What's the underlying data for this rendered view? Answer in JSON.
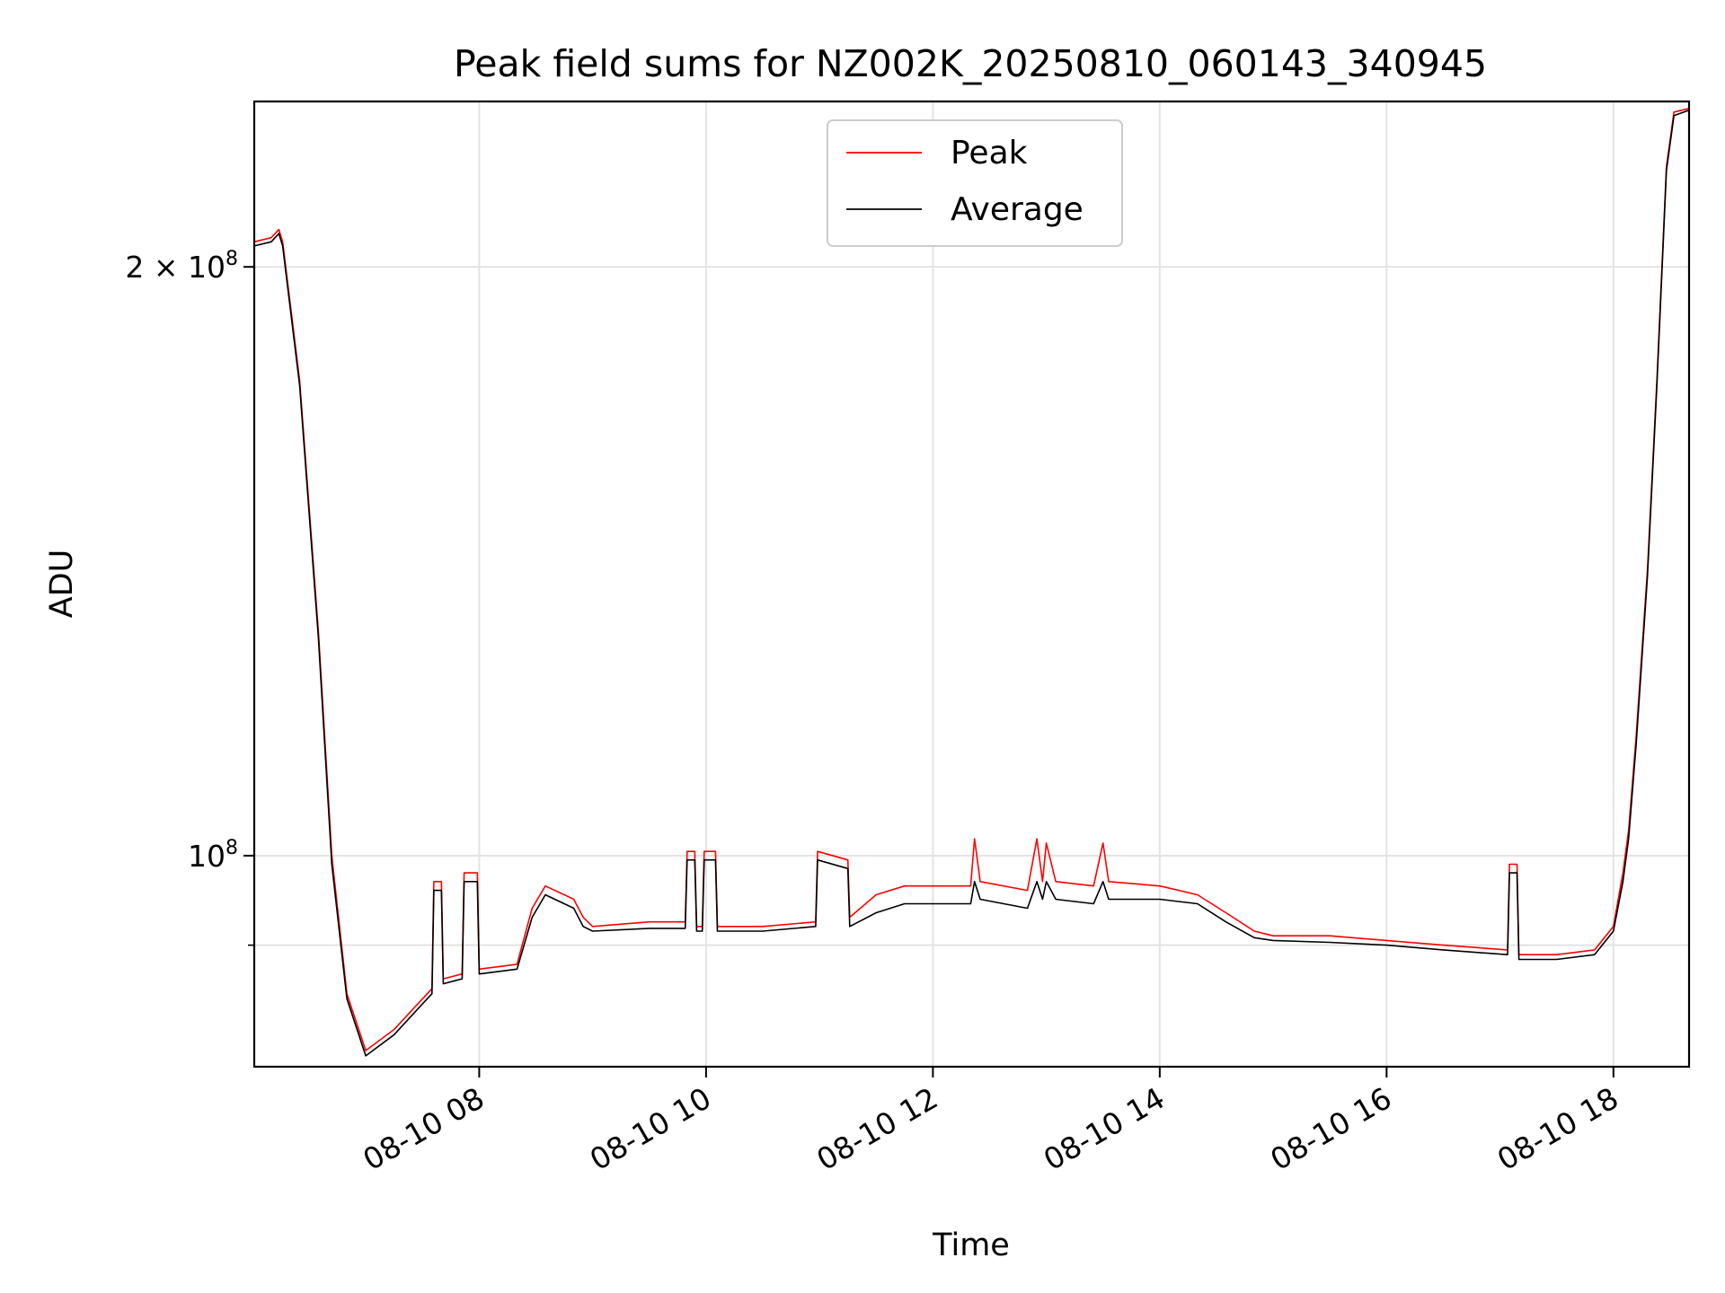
{
  "chart_data": {
    "type": "line",
    "title": "Peak field sums for NZ002K_20250810_060143_340945",
    "xlabel": "Time",
    "ylabel": "ADU",
    "x_ticks": [
      "08-10 08",
      "08-10 10",
      "08-10 12",
      "08-10 14",
      "08-10 16",
      "08-10 18"
    ],
    "y_ticks": [
      {
        "value": 100000000,
        "base": "10",
        "exp": "8",
        "coef": ""
      },
      {
        "value": 200000000,
        "base": "10",
        "exp": "8",
        "coef": "2 × "
      }
    ],
    "y_scale": "log",
    "xlim": [
      "2025-08-10 06:01",
      "2025-08-10 18:40"
    ],
    "ylim": [
      78000000,
      243000000
    ],
    "grid": true,
    "legend_position": "top-center",
    "series": [
      {
        "name": "Peak",
        "color": "#ff0000",
        "points": [
          [
            "2025-08-10 06:01",
            206000000
          ],
          [
            "2025-08-10 06:10",
            207000000
          ],
          [
            "2025-08-10 06:14",
            209000000
          ],
          [
            "2025-08-10 06:16",
            206000000
          ],
          [
            "2025-08-10 06:25",
            175000000
          ],
          [
            "2025-08-10 06:35",
            130000000
          ],
          [
            "2025-08-10 06:42",
            100000000
          ],
          [
            "2025-08-10 06:50",
            85000000
          ],
          [
            "2025-08-10 07:00",
            79500000
          ],
          [
            "2025-08-10 07:15",
            81500000
          ],
          [
            "2025-08-10 07:30",
            84500000
          ],
          [
            "2025-08-10 07:35",
            85500000
          ],
          [
            "2025-08-10 07:36",
            97000000
          ],
          [
            "2025-08-10 07:40",
            97000000
          ],
          [
            "2025-08-10 07:41",
            86500000
          ],
          [
            "2025-08-10 07:51",
            87000000
          ],
          [
            "2025-08-10 07:52",
            98000000
          ],
          [
            "2025-08-10 07:59",
            98000000
          ],
          [
            "2025-08-10 08:00",
            87500000
          ],
          [
            "2025-08-10 08:20",
            88000000
          ],
          [
            "2025-08-10 08:28",
            94000000
          ],
          [
            "2025-08-10 08:35",
            96500000
          ],
          [
            "2025-08-10 08:45",
            95500000
          ],
          [
            "2025-08-10 08:50",
            95000000
          ],
          [
            "2025-08-10 08:55",
            93000000
          ],
          [
            "2025-08-10 09:00",
            92000000
          ],
          [
            "2025-08-10 09:30",
            92500000
          ],
          [
            "2025-08-10 09:49",
            92500000
          ],
          [
            "2025-08-10 09:50",
            100500000
          ],
          [
            "2025-08-10 09:54",
            100500000
          ],
          [
            "2025-08-10 09:55",
            92000000
          ],
          [
            "2025-08-10 09:58",
            92000000
          ],
          [
            "2025-08-10 09:59",
            100500000
          ],
          [
            "2025-08-10 10:05",
            100500000
          ],
          [
            "2025-08-10 10:06",
            92000000
          ],
          [
            "2025-08-10 10:30",
            92000000
          ],
          [
            "2025-08-10 10:58",
            92500000
          ],
          [
            "2025-08-10 10:59",
            100500000
          ],
          [
            "2025-08-10 11:15",
            99500000
          ],
          [
            "2025-08-10 11:16",
            93000000
          ],
          [
            "2025-08-10 11:30",
            95500000
          ],
          [
            "2025-08-10 11:45",
            96500000
          ],
          [
            "2025-08-10 12:00",
            96500000
          ],
          [
            "2025-08-10 12:20",
            96500000
          ],
          [
            "2025-08-10 12:22",
            102000000
          ],
          [
            "2025-08-10 12:25",
            97000000
          ],
          [
            "2025-08-10 12:50",
            96000000
          ],
          [
            "2025-08-10 12:55",
            102000000
          ],
          [
            "2025-08-10 12:58",
            97000000
          ],
          [
            "2025-08-10 13:00",
            101500000
          ],
          [
            "2025-08-10 13:05",
            97000000
          ],
          [
            "2025-08-10 13:25",
            96500000
          ],
          [
            "2025-08-10 13:30",
            101500000
          ],
          [
            "2025-08-10 13:33",
            97000000
          ],
          [
            "2025-08-10 14:00",
            96500000
          ],
          [
            "2025-08-10 14:20",
            95500000
          ],
          [
            "2025-08-10 14:35",
            93500000
          ],
          [
            "2025-08-10 14:50",
            91500000
          ],
          [
            "2025-08-10 15:00",
            91000000
          ],
          [
            "2025-08-10 15:30",
            91000000
          ],
          [
            "2025-08-10 16:00",
            90500000
          ],
          [
            "2025-08-10 16:30",
            90000000
          ],
          [
            "2025-08-10 17:04",
            89500000
          ],
          [
            "2025-08-10 17:05",
            99000000
          ],
          [
            "2025-08-10 17:09",
            99000000
          ],
          [
            "2025-08-10 17:10",
            89000000
          ],
          [
            "2025-08-10 17:30",
            89000000
          ],
          [
            "2025-08-10 17:50",
            89500000
          ],
          [
            "2025-08-10 18:00",
            92000000
          ],
          [
            "2025-08-10 18:05",
            98000000
          ],
          [
            "2025-08-10 18:08",
            103000000
          ],
          [
            "2025-08-10 18:12",
            115000000
          ],
          [
            "2025-08-10 18:18",
            140000000
          ],
          [
            "2025-08-10 18:23",
            175000000
          ],
          [
            "2025-08-10 18:28",
            225000000
          ],
          [
            "2025-08-10 18:32",
            240000000
          ],
          [
            "2025-08-10 18:40",
            241000000
          ]
        ]
      },
      {
        "name": "Average",
        "color": "#000000",
        "points": [
          [
            "2025-08-10 06:01",
            205000000
          ],
          [
            "2025-08-10 06:10",
            206000000
          ],
          [
            "2025-08-10 06:14",
            208000000
          ],
          [
            "2025-08-10 06:16",
            205000000
          ],
          [
            "2025-08-10 06:25",
            174000000
          ],
          [
            "2025-08-10 06:35",
            129000000
          ],
          [
            "2025-08-10 06:42",
            99000000
          ],
          [
            "2025-08-10 06:50",
            84500000
          ],
          [
            "2025-08-10 07:00",
            79000000
          ],
          [
            "2025-08-10 07:15",
            81000000
          ],
          [
            "2025-08-10 07:30",
            84000000
          ],
          [
            "2025-08-10 07:35",
            85000000
          ],
          [
            "2025-08-10 07:36",
            96000000
          ],
          [
            "2025-08-10 07:40",
            96000000
          ],
          [
            "2025-08-10 07:41",
            86000000
          ],
          [
            "2025-08-10 07:51",
            86500000
          ],
          [
            "2025-08-10 07:52",
            97000000
          ],
          [
            "2025-08-10 07:59",
            97000000
          ],
          [
            "2025-08-10 08:00",
            87000000
          ],
          [
            "2025-08-10 08:20",
            87500000
          ],
          [
            "2025-08-10 08:28",
            93000000
          ],
          [
            "2025-08-10 08:35",
            95500000
          ],
          [
            "2025-08-10 08:45",
            94500000
          ],
          [
            "2025-08-10 08:50",
            94000000
          ],
          [
            "2025-08-10 08:55",
            92000000
          ],
          [
            "2025-08-10 09:00",
            91500000
          ],
          [
            "2025-08-10 09:30",
            91800000
          ],
          [
            "2025-08-10 09:49",
            91800000
          ],
          [
            "2025-08-10 09:50",
            99500000
          ],
          [
            "2025-08-10 09:54",
            99500000
          ],
          [
            "2025-08-10 09:55",
            91500000
          ],
          [
            "2025-08-10 09:58",
            91500000
          ],
          [
            "2025-08-10 09:59",
            99500000
          ],
          [
            "2025-08-10 10:05",
            99500000
          ],
          [
            "2025-08-10 10:06",
            91500000
          ],
          [
            "2025-08-10 10:30",
            91500000
          ],
          [
            "2025-08-10 10:58",
            92000000
          ],
          [
            "2025-08-10 10:59",
            99500000
          ],
          [
            "2025-08-10 11:15",
            98500000
          ],
          [
            "2025-08-10 11:16",
            92000000
          ],
          [
            "2025-08-10 11:30",
            93500000
          ],
          [
            "2025-08-10 11:45",
            94500000
          ],
          [
            "2025-08-10 12:00",
            94500000
          ],
          [
            "2025-08-10 12:20",
            94500000
          ],
          [
            "2025-08-10 12:22",
            97000000
          ],
          [
            "2025-08-10 12:25",
            95000000
          ],
          [
            "2025-08-10 12:50",
            94000000
          ],
          [
            "2025-08-10 12:55",
            97000000
          ],
          [
            "2025-08-10 12:58",
            95000000
          ],
          [
            "2025-08-10 13:00",
            97000000
          ],
          [
            "2025-08-10 13:05",
            95000000
          ],
          [
            "2025-08-10 13:25",
            94500000
          ],
          [
            "2025-08-10 13:30",
            97000000
          ],
          [
            "2025-08-10 13:33",
            95000000
          ],
          [
            "2025-08-10 14:00",
            95000000
          ],
          [
            "2025-08-10 14:20",
            94500000
          ],
          [
            "2025-08-10 14:35",
            92500000
          ],
          [
            "2025-08-10 14:50",
            90800000
          ],
          [
            "2025-08-10 15:00",
            90500000
          ],
          [
            "2025-08-10 15:30",
            90300000
          ],
          [
            "2025-08-10 16:00",
            90000000
          ],
          [
            "2025-08-10 16:30",
            89500000
          ],
          [
            "2025-08-10 17:04",
            89000000
          ],
          [
            "2025-08-10 17:05",
            98000000
          ],
          [
            "2025-08-10 17:09",
            98000000
          ],
          [
            "2025-08-10 17:10",
            88500000
          ],
          [
            "2025-08-10 17:30",
            88500000
          ],
          [
            "2025-08-10 17:50",
            89000000
          ],
          [
            "2025-08-10 18:00",
            91500000
          ],
          [
            "2025-08-10 18:05",
            97000000
          ],
          [
            "2025-08-10 18:08",
            102000000
          ],
          [
            "2025-08-10 18:12",
            114000000
          ],
          [
            "2025-08-10 18:18",
            139000000
          ],
          [
            "2025-08-10 18:23",
            174000000
          ],
          [
            "2025-08-10 18:28",
            224000000
          ],
          [
            "2025-08-10 18:32",
            239000000
          ],
          [
            "2025-08-10 18:40",
            240500000
          ]
        ]
      }
    ]
  }
}
